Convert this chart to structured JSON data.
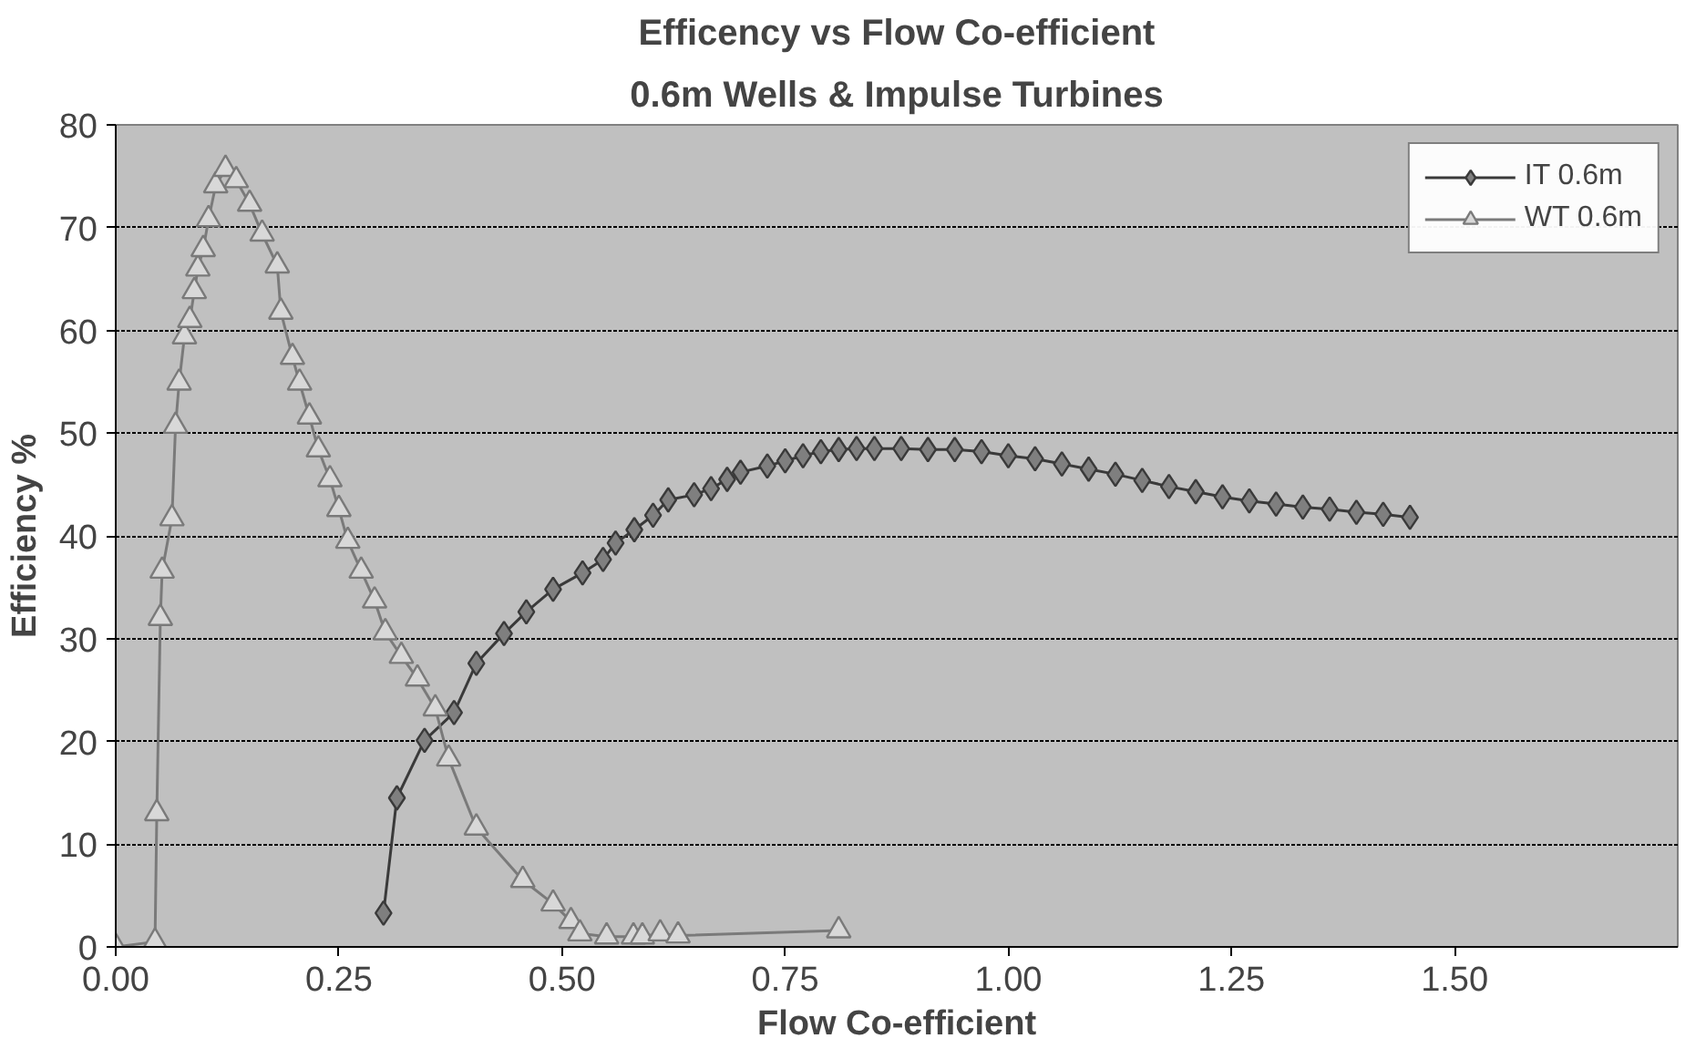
{
  "chart_data": {
    "type": "line",
    "title": "Efficency vs Flow Co-efficient",
    "subtitle": "0.6m Wells & Impulse Turbines",
    "xlabel": "Flow Co-efficient",
    "ylabel": "Efficiency %",
    "xlim": [
      0,
      1.75
    ],
    "ylim": [
      0,
      80
    ],
    "xticks": [
      {
        "value": 0,
        "label": "0.00"
      },
      {
        "value": 0.25,
        "label": "0.25"
      },
      {
        "value": 0.5,
        "label": "0.50"
      },
      {
        "value": 0.75,
        "label": "0.75"
      },
      {
        "value": 1,
        "label": "1.00"
      },
      {
        "value": 1.25,
        "label": "1.25"
      },
      {
        "value": 1.5,
        "label": "1.50"
      }
    ],
    "yticks": [
      0,
      10,
      20,
      30,
      40,
      50,
      60,
      70,
      80
    ],
    "grid": "y",
    "legend": "top right",
    "series": [
      {
        "name": "IT 0.6m",
        "color": "#3a3a3a",
        "marker": "diamond",
        "x": [
          0.3,
          0.315,
          0.346,
          0.379,
          0.404,
          0.435,
          0.46,
          0.49,
          0.523,
          0.546,
          0.56,
          0.581,
          0.602,
          0.619,
          0.648,
          0.667,
          0.685,
          0.7,
          0.73,
          0.75,
          0.77,
          0.79,
          0.81,
          0.83,
          0.85,
          0.88,
          0.91,
          0.94,
          0.97,
          1.0,
          1.03,
          1.06,
          1.09,
          1.12,
          1.15,
          1.18,
          1.21,
          1.24,
          1.27,
          1.3,
          1.33,
          1.36,
          1.39,
          1.42,
          1.45
        ],
        "values": [
          3.3,
          14.5,
          20.1,
          22.8,
          27.6,
          30.5,
          32.6,
          34.8,
          36.4,
          37.7,
          39.3,
          40.6,
          42.0,
          43.5,
          44.0,
          44.6,
          45.5,
          46.2,
          46.8,
          47.3,
          47.8,
          48.2,
          48.4,
          48.5,
          48.5,
          48.5,
          48.4,
          48.4,
          48.2,
          47.8,
          47.5,
          47.0,
          46.5,
          46.0,
          45.4,
          44.8,
          44.3,
          43.8,
          43.4,
          43.1,
          42.8,
          42.6,
          42.3,
          42.1,
          41.8
        ]
      },
      {
        "name": "WT 0.6m",
        "color": "#7a7a7a",
        "marker": "triangle",
        "x": [
          0.0,
          0.044,
          0.046,
          0.05,
          0.052,
          0.063,
          0.067,
          0.071,
          0.077,
          0.083,
          0.088,
          0.092,
          0.098,
          0.104,
          0.112,
          0.123,
          0.135,
          0.15,
          0.164,
          0.181,
          0.185,
          0.198,
          0.206,
          0.217,
          0.227,
          0.24,
          0.25,
          0.26,
          0.275,
          0.29,
          0.302,
          0.32,
          0.338,
          0.358,
          0.373,
          0.404,
          0.456,
          0.49,
          0.51,
          0.52,
          0.55,
          0.58,
          0.59,
          0.61,
          0.63,
          0.81
        ],
        "values": [
          0,
          0.5,
          13,
          32,
          36.6,
          41.7,
          50.7,
          54.9,
          59.4,
          61,
          63.8,
          66,
          67.9,
          70.8,
          74.1,
          75.7,
          74.6,
          72.3,
          69.4,
          66.3,
          61.8,
          57.4,
          54.9,
          51.6,
          48.4,
          45.5,
          42.6,
          39.5,
          36.6,
          33.7,
          30.6,
          28.3,
          26.1,
          23.2,
          18.3,
          11.6,
          6.5,
          4.2,
          2.5,
          1.3,
          1.0,
          1.0,
          1.0,
          1.3,
          1.1,
          1.6
        ]
      }
    ]
  }
}
